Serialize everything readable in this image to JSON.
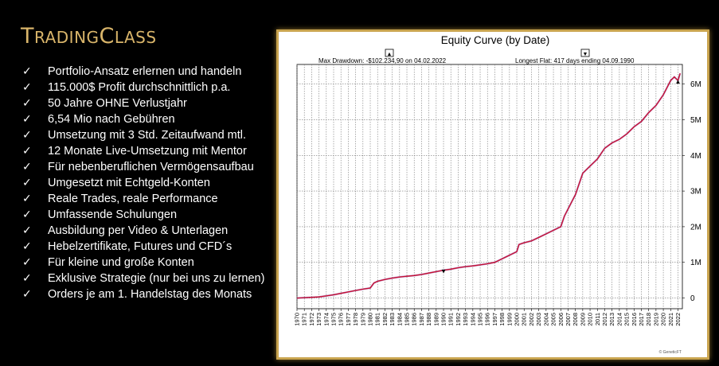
{
  "brand": {
    "title_big_1": "T",
    "title_small_1": "RADING",
    "title_big_2": "C",
    "title_small_2": "LASS",
    "accent": "#d9b56a"
  },
  "features": [
    "Portfolio-Ansatz erlernen und handeln",
    "115.000$ Profit durchschnittlich p.a.",
    "50 Jahre OHNE Verlustjahr",
    "6,54 Mio nach Gebühren",
    "Umsetzung mit 3 Std. Zeitaufwand mtl.",
    "12 Monate Live-Umsetzung mit Mentor",
    "Für nebenberuflichen Vermögensaufbau",
    "Umgesetzt mit Echtgeld-Konten",
    "Reale Trades, reale Performance",
    "Umfassende Schulungen",
    "Ausbildung per Video & Unterlagen",
    "Hebelzertifikate, Futures und CFD´s",
    "Für kleine und große Konten",
    "Exklusive Strategie (nur bei uns zu lernen)",
    "Orders je am 1. Handelstag des Monats"
  ],
  "check_symbol": "✓",
  "chart_data": {
    "type": "line",
    "title": "Equity Curve (by Date)",
    "annotations": {
      "max_drawdown": "Max Drawdown: -$102.234,90 on 04.02.2022",
      "longest_flat": "Longest Flat: 417 days ending 04.09.1990",
      "marker_up": "▲",
      "marker_down": "▼"
    },
    "watermark": "© GeneticFT",
    "x_ticks": [
      "1970",
      "1971",
      "1972",
      "1973",
      "1974",
      "1975",
      "1976",
      "1977",
      "1978",
      "1979",
      "1980",
      "1981",
      "1982",
      "1983",
      "1984",
      "1985",
      "1986",
      "1987",
      "1988",
      "1989",
      "1990",
      "1991",
      "1992",
      "1993",
      "1994",
      "1995",
      "1996",
      "1997",
      "1998",
      "1999",
      "2000",
      "2001",
      "2002",
      "2003",
      "2004",
      "2005",
      "2006",
      "2007",
      "2008",
      "2009",
      "2010",
      "2011",
      "2012",
      "2013",
      "2014",
      "2015",
      "2016",
      "2017",
      "2018",
      "2019",
      "2020",
      "2021",
      "2022"
    ],
    "y_ticks": [
      {
        "value": 0,
        "label": "0"
      },
      {
        "value": 1000000,
        "label": "1M"
      },
      {
        "value": 2000000,
        "label": "2M"
      },
      {
        "value": 3000000,
        "label": "3M"
      },
      {
        "value": 4000000,
        "label": "4M"
      },
      {
        "value": 5000000,
        "label": "5M"
      },
      {
        "value": 6000000,
        "label": "6M"
      }
    ],
    "xlim": [
      1970,
      2022.6
    ],
    "ylim": [
      -300000,
      6550000
    ],
    "grid": true,
    "series": [
      {
        "color": "#c8102e",
        "points": [
          [
            1970,
            0
          ],
          [
            1971,
            10000
          ],
          [
            1972,
            20000
          ],
          [
            1973,
            30000
          ],
          [
            1974,
            60000
          ],
          [
            1975,
            90000
          ],
          [
            1976,
            130000
          ],
          [
            1977,
            170000
          ],
          [
            1978,
            210000
          ],
          [
            1979,
            250000
          ],
          [
            1980,
            280000
          ],
          [
            1980.5,
            420000
          ],
          [
            1981,
            470000
          ],
          [
            1982,
            520000
          ],
          [
            1983,
            560000
          ],
          [
            1984,
            590000
          ],
          [
            1985,
            610000
          ],
          [
            1986,
            630000
          ],
          [
            1987,
            660000
          ],
          [
            1988,
            700000
          ],
          [
            1989,
            740000
          ],
          [
            1990,
            780000
          ],
          [
            1991,
            810000
          ],
          [
            1992,
            850000
          ],
          [
            1993,
            880000
          ],
          [
            1994,
            900000
          ],
          [
            1995,
            930000
          ],
          [
            1996,
            960000
          ],
          [
            1997,
            1000000
          ],
          [
            1998,
            1100000
          ],
          [
            1999,
            1200000
          ],
          [
            2000,
            1300000
          ],
          [
            2000.3,
            1500000
          ],
          [
            2001,
            1550000
          ],
          [
            2002,
            1600000
          ],
          [
            2003,
            1700000
          ],
          [
            2004,
            1800000
          ],
          [
            2005,
            1900000
          ],
          [
            2006,
            2000000
          ],
          [
            2006.5,
            2300000
          ],
          [
            2007,
            2500000
          ],
          [
            2007.5,
            2700000
          ],
          [
            2008,
            2900000
          ],
          [
            2008.5,
            3200000
          ],
          [
            2009,
            3500000
          ],
          [
            2010,
            3700000
          ],
          [
            2011,
            3900000
          ],
          [
            2012,
            4200000
          ],
          [
            2013,
            4350000
          ],
          [
            2014,
            4450000
          ],
          [
            2015,
            4600000
          ],
          [
            2016,
            4800000
          ],
          [
            2017,
            4950000
          ],
          [
            2018,
            5200000
          ],
          [
            2019,
            5400000
          ],
          [
            2020,
            5700000
          ],
          [
            2020.5,
            5900000
          ],
          [
            2021,
            6100000
          ],
          [
            2021.5,
            6200000
          ],
          [
            2022,
            6100000
          ],
          [
            2022.3,
            6300000
          ]
        ]
      }
    ]
  }
}
